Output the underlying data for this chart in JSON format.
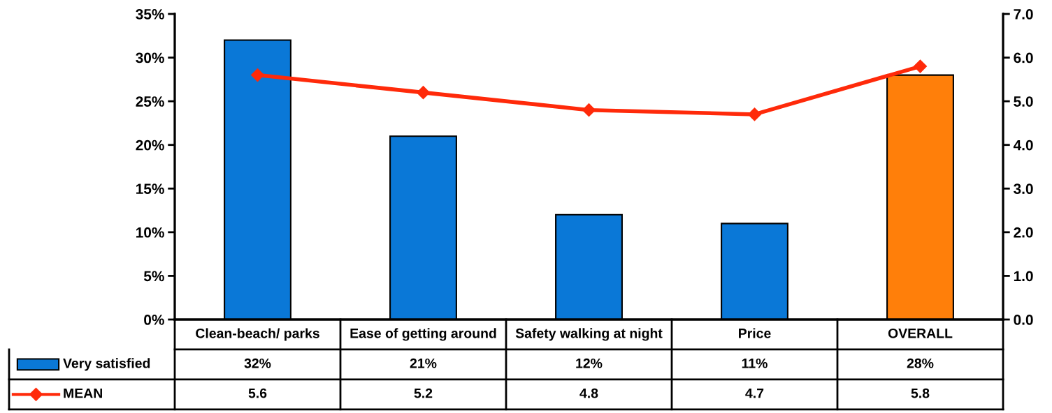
{
  "chart_data": {
    "type": "bar",
    "categories": [
      "Clean-beach/ parks",
      "Ease of getting around",
      "Safety walking at night",
      "Price",
      "OVERALL"
    ],
    "series": [
      {
        "name": "Very satisfied",
        "color": "#0a78d7",
        "colors": [
          "#0a78d7",
          "#0a78d7",
          "#0a78d7",
          "#0a78d7",
          "#ff7f0a"
        ],
        "values": [
          32,
          21,
          12,
          11,
          28
        ],
        "value_labels": [
          "32%",
          "21%",
          "12%",
          "11%",
          "28%"
        ]
      },
      {
        "name": "MEAN",
        "type": "line",
        "axis": "y2",
        "color": "#ff2a0a",
        "marker": "diamond",
        "values": [
          5.6,
          5.2,
          4.8,
          4.7,
          5.8
        ],
        "value_labels": [
          "5.6",
          "5.2",
          "4.8",
          "4.7",
          "5.8"
        ]
      }
    ],
    "ylim": [
      0,
      35
    ],
    "yticks": [
      {
        "value": 0,
        "label": "0%"
      },
      {
        "value": 5,
        "label": "5%"
      },
      {
        "value": 10,
        "label": "10%"
      },
      {
        "value": 15,
        "label": "15%"
      },
      {
        "value": 20,
        "label": "20%"
      },
      {
        "value": 25,
        "label": "25%"
      },
      {
        "value": 30,
        "label": "30%"
      },
      {
        "value": 35,
        "label": "35%"
      }
    ],
    "y2lim": [
      0,
      7
    ],
    "y2ticks": [
      {
        "value": 0,
        "label": "0.0"
      },
      {
        "value": 1,
        "label": "1.0"
      },
      {
        "value": 2,
        "label": "2.0"
      },
      {
        "value": 3,
        "label": "3.0"
      },
      {
        "value": 4,
        "label": "4.0"
      },
      {
        "value": 5,
        "label": "5.0"
      },
      {
        "value": 6,
        "label": "6.0"
      },
      {
        "value": 7,
        "label": "7.0"
      }
    ],
    "grid": false,
    "legend": "bottom left",
    "data_labels": true
  }
}
